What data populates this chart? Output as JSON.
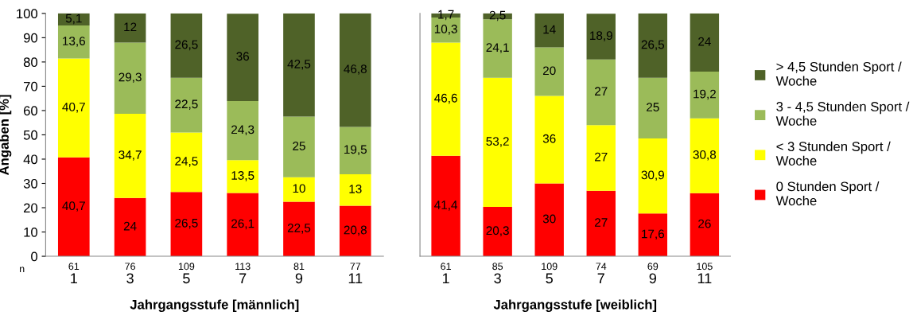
{
  "chart_data": [
    {
      "type": "bar",
      "stacked": true,
      "xlabel": "Jahrgangsstufe [männlich]",
      "ylabel": "Angaben [%]",
      "categories": [
        "1",
        "3",
        "5",
        "7",
        "9",
        "11"
      ],
      "ylim": [
        0,
        100
      ],
      "yticks": [
        0,
        10,
        20,
        30,
        40,
        50,
        60,
        70,
        80,
        90,
        100
      ],
      "grid": false,
      "series": [
        {
          "color": "#ff0000",
          "values": [
            40.7,
            24,
            26.5,
            26.1,
            22.5,
            20.8
          ],
          "value_labels": [
            "40,7",
            "24",
            "26,5",
            "26,1",
            "22,5",
            "20,8"
          ]
        },
        {
          "color": "#ffff00",
          "values": [
            40.7,
            34.7,
            24.5,
            13.5,
            10,
            13
          ],
          "value_labels": [
            "40,7",
            "34,7",
            "24,5",
            "13,5",
            "10",
            "13"
          ]
        },
        {
          "color": "#9bbb59",
          "values": [
            13.6,
            29.3,
            22.5,
            24.3,
            25,
            19.5
          ],
          "value_labels": [
            "13,6",
            "29,3",
            "22,5",
            "24,3",
            "25",
            "19,5"
          ]
        },
        {
          "color": "#4f6228",
          "values": [
            5.1,
            12,
            26.5,
            36,
            42.5,
            46.8
          ],
          "value_labels": [
            "5,1",
            "12",
            "26,5",
            "36",
            "42,5",
            "46,8"
          ]
        }
      ],
      "annotations": [
        "n",
        "61",
        "76",
        "109",
        "113",
        "81",
        "77"
      ]
    },
    {
      "type": "bar",
      "stacked": true,
      "xlabel": "Jahrgangsstufe [weiblich]",
      "categories": [
        "1",
        "3",
        "5",
        "7",
        "9",
        "11"
      ],
      "ylim": [
        0,
        100
      ],
      "tick_labels": "x",
      "grid": false,
      "legend": "right",
      "series": [
        {
          "name": "0 Stunden Sport /\nWoche",
          "color": "#ff0000",
          "values": [
            41.4,
            20.3,
            30,
            27,
            17.6,
            26
          ],
          "value_labels": [
            "41,4",
            "20,3",
            "30",
            "27",
            "17,6",
            "26"
          ]
        },
        {
          "name": "< 3 Stunden Sport /\nWoche",
          "color": "#ffff00",
          "values": [
            46.6,
            53.2,
            36,
            27,
            30.9,
            30.8
          ],
          "value_labels": [
            "46,6",
            "53,2",
            "36",
            "27",
            "30,9",
            "30,8"
          ]
        },
        {
          "name": "3 - 4,5 Stunden Sport /\nWoche",
          "color": "#9bbb59",
          "values": [
            10.3,
            24.1,
            20,
            27,
            25,
            19.2
          ],
          "value_labels": [
            "10,3",
            "24,1",
            "20",
            "27",
            "25",
            "19,2"
          ]
        },
        {
          "name": "> 4,5 Stunden Sport /\nWoche",
          "color": "#4f6228",
          "values": [
            1.7,
            2.5,
            14,
            18.9,
            26.5,
            24
          ],
          "value_labels": [
            "1,7",
            "2,5",
            "14",
            "18,9",
            "26,5",
            "24"
          ]
        }
      ],
      "annotations": [
        "61",
        "85",
        "109",
        "74",
        "69",
        "105"
      ]
    }
  ]
}
